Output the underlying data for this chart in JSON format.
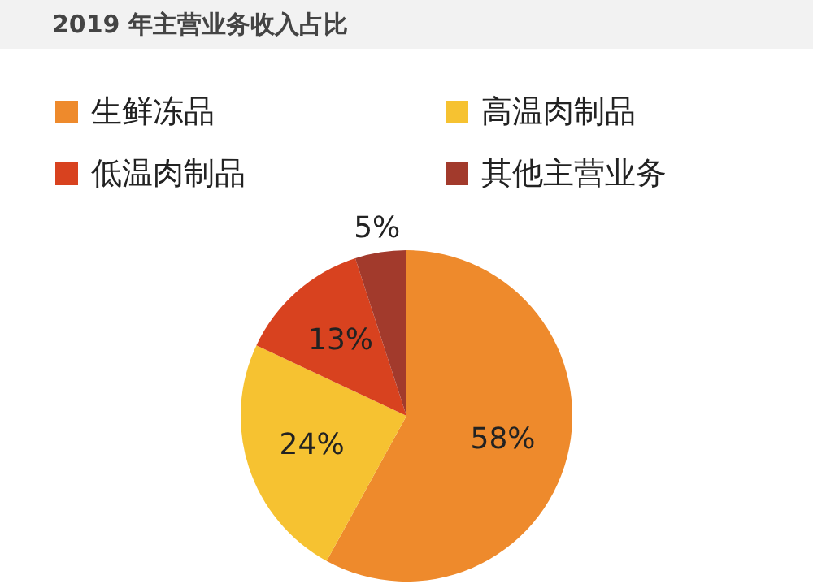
{
  "chart_data": {
    "type": "pie",
    "title": "2019 年主营业务收入占比",
    "categories": [
      "生鲜冻品",
      "高温肉制品",
      "低温肉制品",
      "其他主营业务"
    ],
    "values": [
      58,
      24,
      13,
      5
    ],
    "colors": [
      "#ee8a2c",
      "#f6c231",
      "#d8421f",
      "#a23a2c"
    ],
    "value_labels": [
      "58%",
      "24%",
      "13%",
      "5%"
    ],
    "legend": "top"
  }
}
